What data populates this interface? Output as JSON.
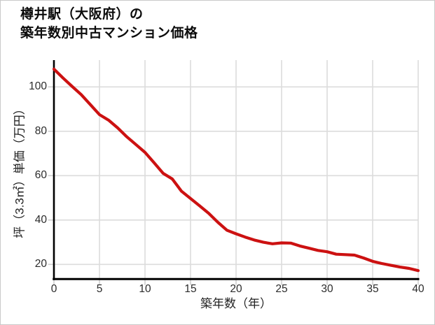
{
  "header": {
    "title_line1": "樽井駅（大阪府）の",
    "title_line2": "築年数別中古マンション価格"
  },
  "chart_data": {
    "type": "line",
    "title": "樽井駅（大阪府）の築年数別中古マンション価格",
    "xlabel": "築年数（年）",
    "ylabel": "坪（3.3㎡）単価（万円）",
    "x": [
      0,
      1,
      2,
      3,
      4,
      5,
      6,
      7,
      8,
      9,
      10,
      11,
      12,
      13,
      14,
      15,
      16,
      17,
      18,
      19,
      20,
      21,
      22,
      23,
      24,
      25,
      26,
      27,
      28,
      29,
      30,
      31,
      32,
      33,
      34,
      35,
      36,
      37,
      38,
      39,
      40
    ],
    "values": [
      108,
      104,
      100.2,
      96.5,
      92,
      87.5,
      85,
      81.5,
      77.5,
      74,
      70.5,
      65.8,
      61,
      58.5,
      53,
      49.7,
      46.4,
      43,
      39,
      35.4,
      33.8,
      32.3,
      31,
      30,
      29.3,
      29.7,
      29.6,
      28.3,
      27.3,
      26.3,
      25.7,
      24.6,
      24.4,
      24.2,
      22.9,
      21.4,
      20.4,
      19.6,
      18.8,
      18.2,
      17.2
    ],
    "x_ticks": [
      0,
      5,
      10,
      15,
      20,
      25,
      30,
      35,
      40
    ],
    "y_ticks": [
      20,
      40,
      60,
      80,
      100
    ],
    "xlim": [
      0,
      40
    ],
    "ylim": [
      13,
      112
    ],
    "grid": true,
    "legend": false,
    "line_color": "#cc1111",
    "grid_color": "#dcdcdc",
    "tick_color": "#cfcfcf",
    "axis_color": "#000000",
    "tick_label_color": "#2b2b2b"
  }
}
